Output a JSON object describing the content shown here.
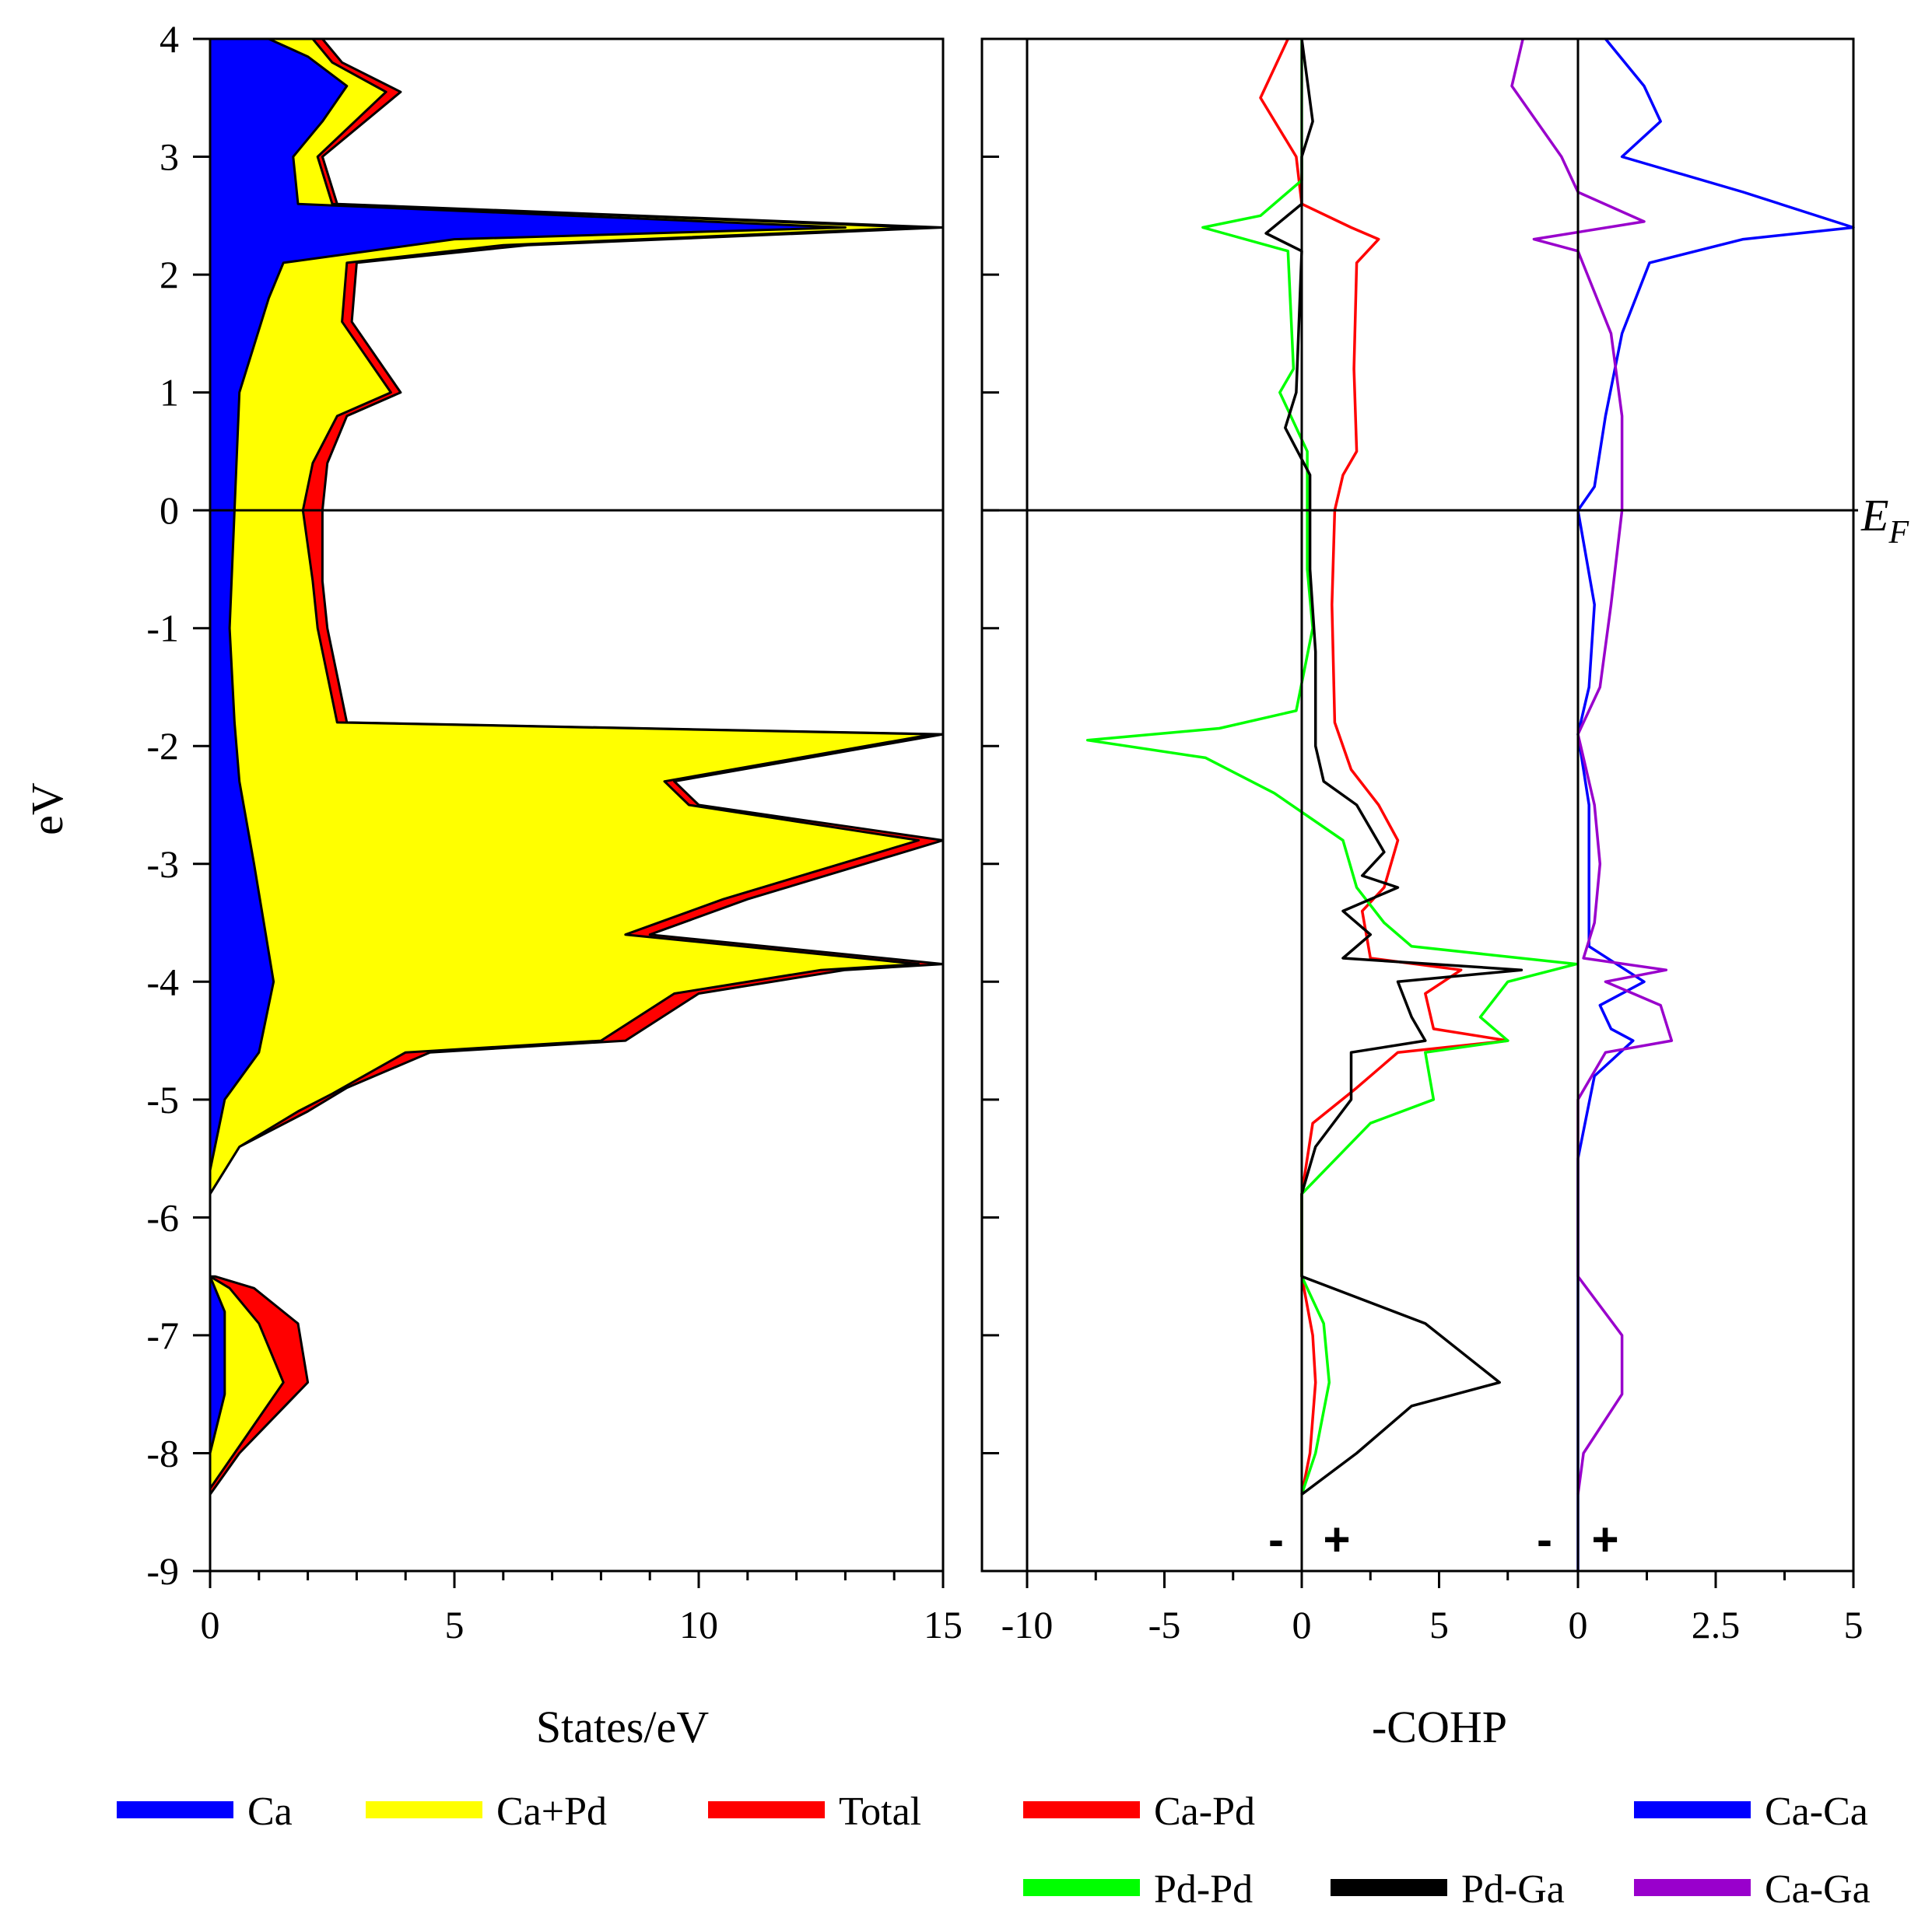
{
  "chart_data": [
    {
      "id": "dos",
      "type": "area",
      "ylabel": "eV",
      "xlabel": "States/eV",
      "xlim": [
        0,
        15
      ],
      "ylim": [
        -9,
        4
      ],
      "x_ticks": [
        0,
        5,
        10,
        15
      ],
      "y_ticks": [
        4,
        3,
        2,
        1,
        0,
        -1,
        -2,
        -3,
        -4,
        -5,
        -6,
        -7,
        -8,
        -9
      ],
      "fermi_level": 0,
      "series": [
        {
          "name": "Total",
          "color": "#ff0000",
          "points": [
            [
              0,
              -8.35
            ],
            [
              0.6,
              -8.0
            ],
            [
              2.0,
              -7.4
            ],
            [
              1.8,
              -6.9
            ],
            [
              0.9,
              -6.6
            ],
            [
              0.1,
              -6.5
            ],
            [
              0,
              -6.5
            ],
            [
              0,
              -5.8
            ],
            [
              0.6,
              -5.4
            ],
            [
              2.0,
              -5.1
            ],
            [
              2.8,
              -4.9
            ],
            [
              4.5,
              -4.6
            ],
            [
              8.5,
              -4.5
            ],
            [
              10,
              -4.1
            ],
            [
              13,
              -3.9
            ],
            [
              15,
              -3.85
            ],
            [
              9,
              -3.6
            ],
            [
              11,
              -3.3
            ],
            [
              15,
              -2.8
            ],
            [
              10,
              -2.5
            ],
            [
              9.5,
              -2.3
            ],
            [
              15,
              -1.9
            ],
            [
              2.8,
              -1.8
            ],
            [
              2.4,
              -1.0
            ],
            [
              2.3,
              -0.6
            ],
            [
              2.3,
              0.0
            ],
            [
              2.4,
              0.4
            ],
            [
              2.8,
              0.8
            ],
            [
              3.9,
              1.0
            ],
            [
              2.9,
              1.6
            ],
            [
              3.0,
              2.1
            ],
            [
              6.5,
              2.25
            ],
            [
              15,
              2.4
            ],
            [
              2.6,
              2.6
            ],
            [
              2.3,
              3.0
            ],
            [
              3.9,
              3.55
            ],
            [
              2.7,
              3.8
            ],
            [
              2.3,
              4.0
            ]
          ]
        },
        {
          "name": "Ca+Pd",
          "color": "#ffff00",
          "points": [
            [
              0,
              -8.3
            ],
            [
              0.5,
              -8.0
            ],
            [
              1.5,
              -7.4
            ],
            [
              1.0,
              -6.9
            ],
            [
              0.4,
              -6.6
            ],
            [
              0,
              -6.5
            ],
            [
              0,
              -5.8
            ],
            [
              0.6,
              -5.4
            ],
            [
              1.8,
              -5.1
            ],
            [
              2.5,
              -4.95
            ],
            [
              4.0,
              -4.6
            ],
            [
              8.0,
              -4.5
            ],
            [
              9.5,
              -4.1
            ],
            [
              12.5,
              -3.9
            ],
            [
              14.5,
              -3.85
            ],
            [
              8.5,
              -3.6
            ],
            [
              10.5,
              -3.3
            ],
            [
              14.5,
              -2.8
            ],
            [
              9.8,
              -2.5
            ],
            [
              9.3,
              -2.3
            ],
            [
              14.8,
              -1.9
            ],
            [
              2.6,
              -1.8
            ],
            [
              2.2,
              -1.0
            ],
            [
              2.1,
              -0.6
            ],
            [
              1.9,
              0.0
            ],
            [
              2.1,
              0.4
            ],
            [
              2.6,
              0.8
            ],
            [
              3.7,
              1.0
            ],
            [
              2.7,
              1.6
            ],
            [
              2.8,
              2.1
            ],
            [
              6.0,
              2.25
            ],
            [
              14.5,
              2.4
            ],
            [
              2.5,
              2.6
            ],
            [
              2.2,
              3.0
            ],
            [
              3.6,
              3.55
            ],
            [
              2.5,
              3.8
            ],
            [
              2.1,
              4.0
            ]
          ]
        },
        {
          "name": "Ca",
          "color": "#0000ff",
          "points": [
            [
              0,
              -8.0
            ],
            [
              0.3,
              -7.5
            ],
            [
              0.3,
              -6.8
            ],
            [
              0,
              -6.5
            ],
            [
              0,
              -5.6
            ],
            [
              0.3,
              -5.0
            ],
            [
              1.0,
              -4.6
            ],
            [
              1.3,
              -4.0
            ],
            [
              1.1,
              -3.5
            ],
            [
              0.9,
              -3.0
            ],
            [
              0.6,
              -2.3
            ],
            [
              0.5,
              -1.8
            ],
            [
              0.4,
              -1.0
            ],
            [
              0.5,
              0.0
            ],
            [
              0.6,
              1.0
            ],
            [
              1.2,
              1.8
            ],
            [
              1.5,
              2.1
            ],
            [
              5.0,
              2.3
            ],
            [
              13,
              2.4
            ],
            [
              1.8,
              2.6
            ],
            [
              1.7,
              3.0
            ],
            [
              2.3,
              3.3
            ],
            [
              2.8,
              3.6
            ],
            [
              2.0,
              3.85
            ],
            [
              1.2,
              4.0
            ]
          ]
        }
      ]
    },
    {
      "id": "cohp-pd",
      "type": "line",
      "xlabel": "-COHP",
      "xlim": [
        -10,
        10
      ],
      "ylim": [
        -9,
        4
      ],
      "x_ticks": [
        -10,
        -5,
        0,
        5
      ],
      "fermi_level": 0,
      "fermi_label": "E",
      "fermi_label_sub": "F",
      "signs": [
        "-",
        "+"
      ],
      "series": [
        {
          "name": "Ca-Pd",
          "color": "#ff0000",
          "points": [
            [
              -0.5,
              4.0
            ],
            [
              -1.5,
              3.5
            ],
            [
              -0.2,
              3.0
            ],
            [
              0,
              2.6
            ],
            [
              1.8,
              2.4
            ],
            [
              2.8,
              2.3
            ],
            [
              2.0,
              2.1
            ],
            [
              1.9,
              1.2
            ],
            [
              2.0,
              0.5
            ],
            [
              1.5,
              0.3
            ],
            [
              1.2,
              0.0
            ],
            [
              1.1,
              -0.8
            ],
            [
              1.2,
              -1.8
            ],
            [
              1.8,
              -2.2
            ],
            [
              2.8,
              -2.5
            ],
            [
              3.5,
              -2.8
            ],
            [
              3.0,
              -3.2
            ],
            [
              2.2,
              -3.4
            ],
            [
              2.5,
              -3.8
            ],
            [
              5.8,
              -3.9
            ],
            [
              4.5,
              -4.1
            ],
            [
              4.8,
              -4.4
            ],
            [
              7.5,
              -4.5
            ],
            [
              3.5,
              -4.6
            ],
            [
              2.0,
              -4.9
            ],
            [
              0.4,
              -5.2
            ],
            [
              0,
              -5.8
            ],
            [
              0,
              -6.5
            ],
            [
              0.4,
              -7.0
            ],
            [
              0.5,
              -7.4
            ],
            [
              0.3,
              -8.0
            ],
            [
              0,
              -8.35
            ]
          ]
        },
        {
          "name": "Pd-Pd",
          "color": "#00ff00",
          "points": [
            [
              0,
              4.0
            ],
            [
              0,
              2.8
            ],
            [
              -1.5,
              2.5
            ],
            [
              -3.6,
              2.4
            ],
            [
              -0.5,
              2.2
            ],
            [
              -0.3,
              1.2
            ],
            [
              -0.8,
              1.0
            ],
            [
              0.2,
              0.5
            ],
            [
              0.2,
              -0.5
            ],
            [
              0.4,
              -1.0
            ],
            [
              -0.2,
              -1.7
            ],
            [
              -3.0,
              -1.85
            ],
            [
              -7.8,
              -1.95
            ],
            [
              -3.5,
              -2.1
            ],
            [
              -1.0,
              -2.4
            ],
            [
              1.5,
              -2.8
            ],
            [
              2.0,
              -3.2
            ],
            [
              3.0,
              -3.5
            ],
            [
              4.0,
              -3.7
            ],
            [
              10.0,
              -3.85
            ],
            [
              7.5,
              -4.0
            ],
            [
              6.5,
              -4.3
            ],
            [
              7.5,
              -4.5
            ],
            [
              4.5,
              -4.6
            ],
            [
              4.8,
              -5.0
            ],
            [
              2.5,
              -5.2
            ],
            [
              0,
              -5.8
            ],
            [
              0,
              -6.5
            ],
            [
              0.8,
              -6.9
            ],
            [
              1.0,
              -7.4
            ],
            [
              0.5,
              -8.0
            ],
            [
              0,
              -8.35
            ]
          ]
        },
        {
          "name": "Pd-Ga",
          "color": "#000000",
          "points": [
            [
              0,
              4.0
            ],
            [
              0.4,
              3.3
            ],
            [
              0,
              3.0
            ],
            [
              0,
              2.6
            ],
            [
              -1.3,
              2.35
            ],
            [
              0,
              2.2
            ],
            [
              -0.2,
              1.0
            ],
            [
              -0.6,
              0.7
            ],
            [
              0.3,
              0.3
            ],
            [
              0.3,
              -0.5
            ],
            [
              0.5,
              -1.2
            ],
            [
              0.5,
              -2.0
            ],
            [
              0.8,
              -2.3
            ],
            [
              2.0,
              -2.5
            ],
            [
              3.0,
              -2.9
            ],
            [
              2.2,
              -3.1
            ],
            [
              3.5,
              -3.2
            ],
            [
              1.5,
              -3.4
            ],
            [
              2.5,
              -3.6
            ],
            [
              1.5,
              -3.8
            ],
            [
              8.0,
              -3.9
            ],
            [
              3.5,
              -4.0
            ],
            [
              4.0,
              -4.3
            ],
            [
              4.5,
              -4.5
            ],
            [
              1.8,
              -4.6
            ],
            [
              1.8,
              -5.0
            ],
            [
              0.5,
              -5.4
            ],
            [
              0,
              -5.8
            ],
            [
              0,
              -6.5
            ],
            [
              4.5,
              -6.9
            ],
            [
              7.2,
              -7.4
            ],
            [
              4.0,
              -7.6
            ],
            [
              2.0,
              -8.0
            ],
            [
              0,
              -8.35
            ]
          ]
        }
      ]
    },
    {
      "id": "cohp-ca",
      "type": "line",
      "xlim": [
        -5,
        5
      ],
      "ylim": [
        -9,
        4
      ],
      "x_ticks": [
        0,
        2.5,
        5
      ],
      "x_tick_labels": [
        "0",
        "2.5",
        "5"
      ],
      "signs": [
        "-",
        "+"
      ],
      "series": [
        {
          "name": "Ca-Ca",
          "color": "#0000ff",
          "points": [
            [
              0.5,
              4.0
            ],
            [
              1.2,
              3.6
            ],
            [
              1.5,
              3.3
            ],
            [
              0.8,
              3.0
            ],
            [
              3.0,
              2.7
            ],
            [
              5.0,
              2.4
            ],
            [
              3.0,
              2.3
            ],
            [
              1.3,
              2.1
            ],
            [
              0.8,
              1.5
            ],
            [
              0.5,
              0.8
            ],
            [
              0.3,
              0.2
            ],
            [
              0,
              0.0
            ],
            [
              0.3,
              -0.8
            ],
            [
              0.2,
              -1.5
            ],
            [
              0,
              -1.9
            ],
            [
              0.2,
              -2.5
            ],
            [
              0.2,
              -3.2
            ],
            [
              0.2,
              -3.7
            ],
            [
              1.2,
              -4.0
            ],
            [
              0.4,
              -4.2
            ],
            [
              0.6,
              -4.4
            ],
            [
              1.0,
              -4.5
            ],
            [
              0.3,
              -4.8
            ],
            [
              0,
              -5.5
            ],
            [
              0,
              -9.0
            ]
          ]
        },
        {
          "name": "Ca-Ga",
          "color": "#9900cc",
          "points": [
            [
              -1.0,
              4.0
            ],
            [
              -1.2,
              3.6
            ],
            [
              -0.3,
              3.0
            ],
            [
              0,
              2.7
            ],
            [
              1.2,
              2.45
            ],
            [
              -0.8,
              2.3
            ],
            [
              0,
              2.2
            ],
            [
              0.6,
              1.5
            ],
            [
              0.8,
              0.8
            ],
            [
              0.8,
              0.0
            ],
            [
              0.6,
              -0.8
            ],
            [
              0.4,
              -1.5
            ],
            [
              0,
              -1.9
            ],
            [
              0.3,
              -2.5
            ],
            [
              0.4,
              -3.0
            ],
            [
              0.3,
              -3.5
            ],
            [
              0.1,
              -3.8
            ],
            [
              1.6,
              -3.9
            ],
            [
              0.5,
              -4.0
            ],
            [
              1.5,
              -4.2
            ],
            [
              1.7,
              -4.5
            ],
            [
              0.5,
              -4.6
            ],
            [
              0,
              -5.0
            ],
            [
              0,
              -6.5
            ],
            [
              0.8,
              -7.0
            ],
            [
              0.8,
              -7.5
            ],
            [
              0.1,
              -8.0
            ],
            [
              0,
              -8.35
            ]
          ]
        }
      ]
    }
  ],
  "legend": {
    "items": [
      {
        "label": "Ca",
        "color": "#0000ff"
      },
      {
        "label": "Ca+Pd",
        "color": "#ffff00"
      },
      {
        "label": "Total",
        "color": "#ff0000"
      },
      {
        "label": "Ca-Pd",
        "color": "#ff0000"
      },
      {
        "label": "Ca-Ca",
        "color": "#0000ff"
      },
      {
        "label": "Pd-Pd",
        "color": "#00ff00"
      },
      {
        "label": "Pd-Ga",
        "color": "#000000"
      },
      {
        "label": "Ca-Ga",
        "color": "#9900cc"
      }
    ]
  }
}
